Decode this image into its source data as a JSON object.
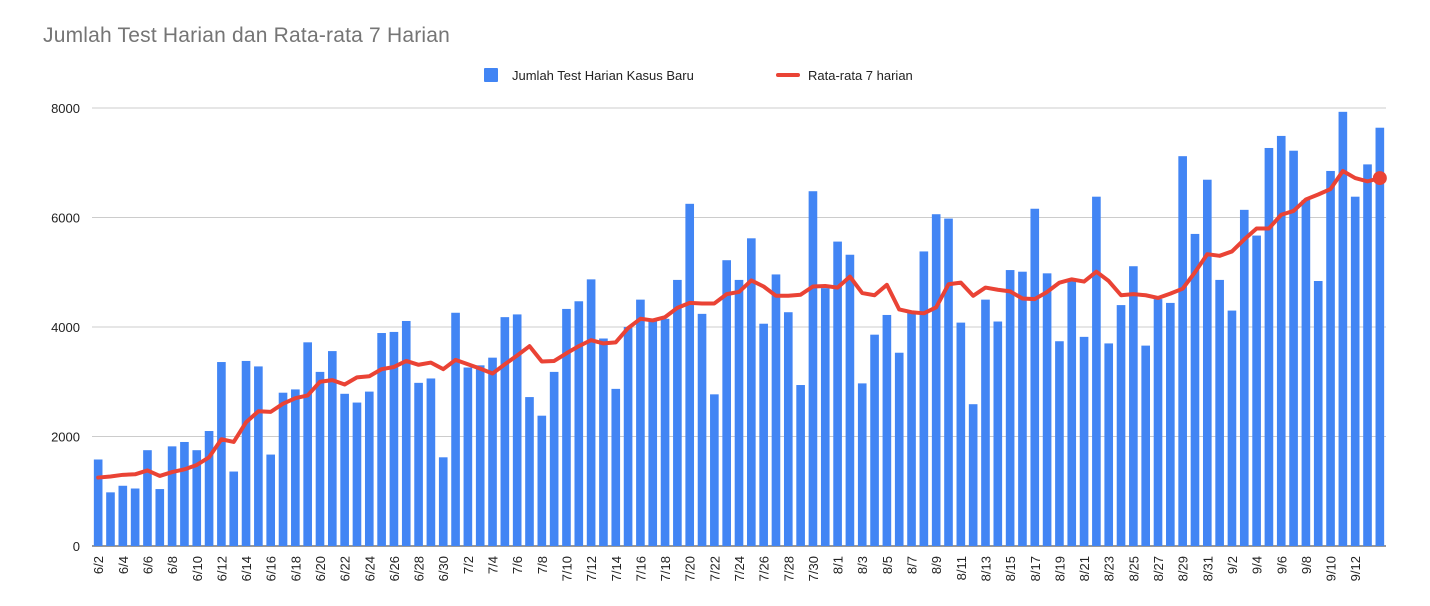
{
  "chart_data": {
    "type": "bar",
    "title": "Jumlah Test Harian dan Rata-rata 7 Harian",
    "xlabel": "",
    "ylabel": "",
    "ylim": [
      0,
      8000
    ],
    "yticks": [
      0,
      2000,
      4000,
      6000,
      8000
    ],
    "grid": true,
    "legend_position": "top-center",
    "x_tick_labels": [
      "6/2",
      "6/4",
      "6/6",
      "6/8",
      "6/10",
      "6/12",
      "6/14",
      "6/16",
      "6/18",
      "6/20",
      "6/22",
      "6/24",
      "6/26",
      "6/28",
      "6/30",
      "7/2",
      "7/4",
      "7/6",
      "7/8",
      "7/10",
      "7/12",
      "7/14",
      "7/16",
      "7/18",
      "7/20",
      "7/22",
      "7/24",
      "7/26",
      "7/28",
      "7/30",
      "8/1",
      "8/3",
      "8/5",
      "8/7",
      "8/9",
      "8/11",
      "8/13",
      "8/15",
      "8/17",
      "8/19",
      "8/21",
      "8/23",
      "8/25",
      "8/27",
      "8/29",
      "8/31",
      "9/2",
      "9/4",
      "9/6",
      "9/8",
      "9/10",
      "9/12"
    ],
    "series": [
      {
        "name": "Jumlah Test Harian Kasus Baru",
        "type": "bar",
        "color": "#4285f4",
        "values": [
          1580,
          980,
          1100,
          1050,
          1750,
          1040,
          1820,
          1900,
          1750,
          2100,
          3360,
          1360,
          3380,
          3280,
          1670,
          2800,
          2860,
          3720,
          3180,
          3560,
          2780,
          2620,
          2820,
          3890,
          3910,
          4110,
          2980,
          3060,
          1620,
          4260,
          3260,
          3300,
          3440,
          4180,
          4230,
          2720,
          2380,
          3180,
          4330,
          4470,
          4870,
          3790,
          2870,
          4000,
          4500,
          4150,
          4150,
          4860,
          6250,
          4240,
          2770,
          5220,
          4860,
          5620,
          4060,
          4960,
          4270,
          2940,
          6480,
          4710,
          5560,
          5320,
          2970,
          3860,
          4220,
          3530,
          4260,
          5380,
          6060,
          5980,
          4080,
          2590,
          4500,
          4100,
          5040,
          5010,
          6160,
          4980,
          3740,
          4860,
          3820,
          6380,
          3700,
          4400,
          5110,
          3660,
          4510,
          4440,
          7120,
          5700,
          6690,
          4860,
          4300,
          6140,
          5670,
          7270,
          7490,
          7220,
          6320,
          4840,
          6850,
          7930,
          6380,
          6970,
          7640
        ]
      },
      {
        "name": "Rata-rata 7 harian",
        "type": "line",
        "color": "#ea4335",
        "values": [
          1250,
          1270,
          1300,
          1310,
          1380,
          1280,
          1350,
          1400,
          1480,
          1620,
          1950,
          1900,
          2260,
          2460,
          2450,
          2600,
          2700,
          2750,
          3000,
          3030,
          2950,
          3080,
          3100,
          3230,
          3270,
          3380,
          3310,
          3350,
          3230,
          3400,
          3320,
          3240,
          3150,
          3320,
          3480,
          3650,
          3370,
          3380,
          3520,
          3650,
          3760,
          3700,
          3720,
          3980,
          4150,
          4120,
          4180,
          4350,
          4440,
          4430,
          4430,
          4600,
          4640,
          4850,
          4740,
          4570,
          4570,
          4590,
          4740,
          4750,
          4720,
          4920,
          4620,
          4580,
          4770,
          4320,
          4270,
          4250,
          4360,
          4780,
          4810,
          4570,
          4720,
          4680,
          4650,
          4520,
          4510,
          4640,
          4810,
          4870,
          4830,
          5010,
          4840,
          4580,
          4600,
          4580,
          4530,
          4610,
          4700,
          5000,
          5330,
          5300,
          5380,
          5600,
          5800,
          5800,
          6050,
          6120,
          6330,
          6420,
          6520,
          6850,
          6720,
          6660,
          6720
        ]
      }
    ]
  }
}
